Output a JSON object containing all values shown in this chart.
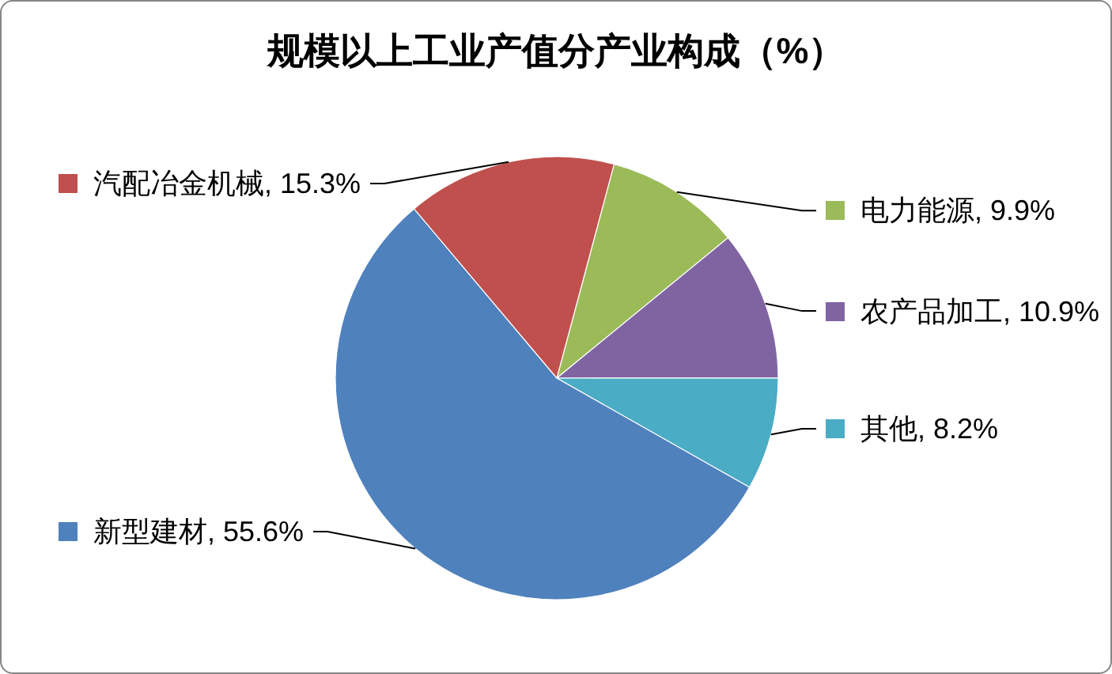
{
  "chart_data": {
    "type": "pie",
    "title": "规模以上工业产值分产业构成（%）",
    "categories": [
      "电力能源",
      "农产品加工",
      "其他",
      "新型建材",
      "汽配冶金机械"
    ],
    "values": [
      9.9,
      10.9,
      8.2,
      55.6,
      15.3
    ],
    "colors": [
      "#9bbb59",
      "#8064a2",
      "#4bacc6",
      "#4f81bd",
      "#c0504d"
    ],
    "value_labels": [
      "9.9%",
      "10.9%",
      "8.2%",
      "55.6%",
      "15.3%"
    ],
    "legend": "right"
  }
}
